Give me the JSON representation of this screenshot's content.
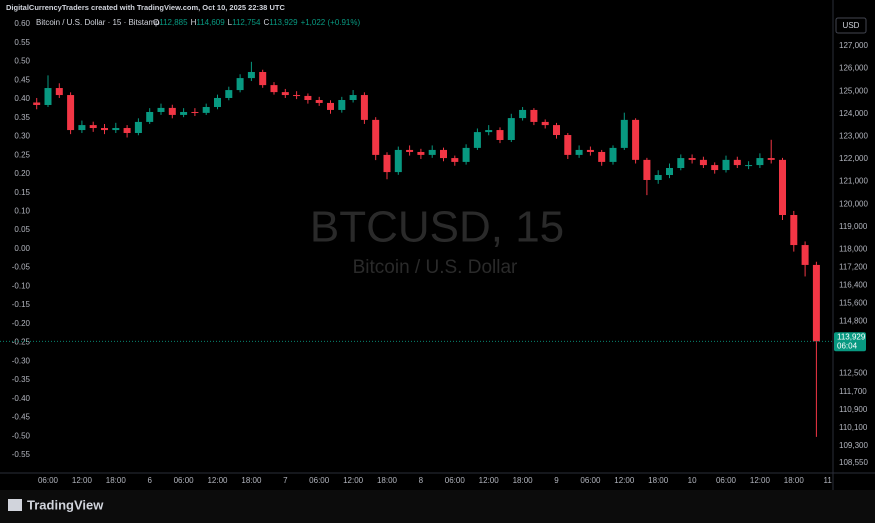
{
  "header": {
    "attribution": "DigitalCurrencyTraders created with TradingView.com, Oct 10, 2025 22:38 UTC"
  },
  "chart_data": {
    "type": "candlestick",
    "symbol_line": "Bitcoin / U.S. Dollar · 15 · Bitstamp",
    "ohlc": [
      {
        "key": "O",
        "value": "112,885"
      },
      {
        "key": "H",
        "value": "114,609"
      },
      {
        "key": "L",
        "value": "112,754"
      },
      {
        "key": "C",
        "value": "113,929"
      }
    ],
    "change": "+1,022 (+0.91%)",
    "watermark": "BTCUSD, 15",
    "watermark_subtitle": "Bitcoin / U.S. Dollar",
    "currency": "USD",
    "up_color": "#089981",
    "down_color": "#f23645",
    "categories": [
      null,
      "06:00",
      null,
      null,
      "12:00",
      null,
      null,
      "18:00",
      null,
      null,
      "6",
      null,
      null,
      "06:00",
      null,
      null,
      "12:00",
      null,
      null,
      "18:00",
      null,
      null,
      "7",
      null,
      null,
      "06:00",
      null,
      null,
      "12:00",
      null,
      null,
      "18:00",
      null,
      null,
      "8",
      null,
      null,
      "06:00",
      null,
      null,
      "12:00",
      null,
      null,
      "18:00",
      null,
      null,
      "9",
      null,
      null,
      "06:00",
      null,
      null,
      "12:00",
      null,
      null,
      "18:00",
      null,
      null,
      "10",
      null,
      null,
      "06:00",
      null,
      null,
      "12:00",
      null,
      null,
      "18:00",
      null,
      null,
      "11"
    ],
    "open": [
      124500,
      124390,
      125140,
      124830,
      123280,
      123500,
      123370,
      123280,
      123370,
      123150,
      123640,
      124080,
      124260,
      123950,
      124080,
      124040,
      124300,
      124700,
      125050,
      125580,
      125850,
      125270,
      124960,
      124830,
      124790,
      124610,
      124480,
      124170,
      124610,
      124830,
      123730,
      122180,
      121420,
      122400,
      122310,
      122180,
      122400,
      122040,
      121870,
      122490,
      123190,
      123280,
      122840,
      123810,
      124170,
      123640,
      123500,
      123060,
      122180,
      122400,
      122310,
      121870,
      122490,
      123730,
      121960,
      121070,
      121290,
      121600,
      122040,
      121960,
      121730,
      121510,
      121960,
      121730,
      121730,
      122040,
      121960,
      119520,
      118190,
      117310,
      null
    ],
    "high": [
      124700,
      125700,
      125350,
      124950,
      123700,
      123650,
      123550,
      123600,
      123500,
      123800,
      124250,
      124450,
      124400,
      124250,
      124250,
      124450,
      124850,
      125200,
      125750,
      126300,
      125950,
      125400,
      125100,
      125000,
      124900,
      124750,
      124600,
      124750,
      125050,
      124950,
      123850,
      122300,
      122550,
      122600,
      122450,
      122600,
      122500,
      122150,
      122650,
      123350,
      123500,
      123400,
      124000,
      124300,
      124250,
      123750,
      123600,
      123150,
      122600,
      122550,
      122400,
      122600,
      124050,
      123800,
      122050,
      121500,
      121800,
      122200,
      122200,
      122100,
      121850,
      122150,
      122100,
      121900,
      122250,
      122850,
      122050,
      119700,
      118350,
      117450,
      null
    ],
    "low": [
      124200,
      124300,
      124700,
      123100,
      123150,
      123200,
      123100,
      123150,
      122950,
      123050,
      123550,
      123950,
      123800,
      123850,
      123900,
      123950,
      124200,
      124600,
      124950,
      125450,
      125150,
      124850,
      124700,
      124650,
      124450,
      124350,
      124000,
      124050,
      124500,
      123550,
      121950,
      121100,
      121300,
      122150,
      122000,
      122050,
      121900,
      121700,
      121750,
      122400,
      123050,
      122700,
      122750,
      123700,
      123500,
      123350,
      122900,
      122000,
      122050,
      122150,
      121700,
      121750,
      122400,
      121800,
      120400,
      120900,
      121150,
      121500,
      121800,
      121600,
      121350,
      121400,
      121600,
      121550,
      121600,
      121800,
      119300,
      117900,
      116800,
      109700,
      null
    ],
    "close": [
      124390,
      125140,
      124830,
      123280,
      123500,
      123370,
      123280,
      123370,
      123150,
      123640,
      124080,
      124260,
      123950,
      124080,
      124040,
      124300,
      124700,
      125050,
      125580,
      125850,
      125270,
      124960,
      124830,
      124790,
      124610,
      124480,
      124170,
      124610,
      124830,
      123730,
      122180,
      121420,
      122400,
      122310,
      122180,
      122400,
      122040,
      121870,
      122490,
      123190,
      123280,
      122840,
      123810,
      124170,
      123640,
      123500,
      123060,
      122180,
      122400,
      122310,
      121870,
      122490,
      123730,
      121960,
      121070,
      121290,
      121600,
      122040,
      121960,
      121730,
      121510,
      121960,
      121730,
      121730,
      122040,
      121960,
      119520,
      118190,
      117310,
      113929,
      null
    ],
    "ylim": [
      108100,
      128240
    ],
    "yticks": [
      {
        "value": 127000,
        "label": "127,000"
      },
      {
        "value": 126000,
        "label": "126,000"
      },
      {
        "value": 125000,
        "label": "125,000"
      },
      {
        "value": 124000,
        "label": "124,000"
      },
      {
        "value": 123000,
        "label": "123,000"
      },
      {
        "value": 122000,
        "label": "122,000"
      },
      {
        "value": 121000,
        "label": "121,000"
      },
      {
        "value": 120000,
        "label": "120,000"
      },
      {
        "value": 119000,
        "label": "119,000"
      },
      {
        "value": 118000,
        "label": "118,000"
      },
      {
        "value": 117200,
        "label": "117,200"
      },
      {
        "value": 116400,
        "label": "116,400"
      },
      {
        "value": 115600,
        "label": "115,600"
      },
      {
        "value": 114800,
        "label": "114,800"
      },
      {
        "value": 112500,
        "label": "112,500"
      },
      {
        "value": 111700,
        "label": "111,700"
      },
      {
        "value": 110900,
        "label": "110,900"
      },
      {
        "value": 110100,
        "label": "110,100"
      },
      {
        "value": 109300,
        "label": "109,300"
      },
      {
        "value": 108550,
        "label": "108,550"
      }
    ],
    "y2lim": [
      -0.598,
      0.616
    ],
    "y2ticks": [
      {
        "value": 0.6,
        "label": "0.60"
      },
      0.55,
      {
        "value": 0.5,
        "label": "0.50"
      },
      0.45,
      {
        "value": 0.4,
        "label": "0.40"
      },
      0.35,
      {
        "value": 0.3,
        "label": "0.30"
      },
      0.25,
      {
        "value": 0.2,
        "label": "0.20"
      },
      0.15,
      {
        "value": 0.1,
        "label": "0.10"
      },
      0.05,
      {
        "value": 0,
        "label": "0.00"
      },
      -0.05,
      {
        "value": -0.1,
        "label": "-0.10"
      },
      -0.15,
      {
        "value": -0.2,
        "label": "-0.20"
      },
      -0.25,
      {
        "value": -0.3,
        "label": "-0.30"
      },
      -0.35,
      {
        "value": -0.4,
        "label": "-0.40"
      },
      -0.45,
      {
        "value": -0.5,
        "label": "-0.50"
      },
      -0.55
    ],
    "last_price": {
      "value": 113929,
      "label": "113,929"
    },
    "countdown": "06:04",
    "grid": false
  },
  "footer": {
    "brand": "TradingView"
  }
}
